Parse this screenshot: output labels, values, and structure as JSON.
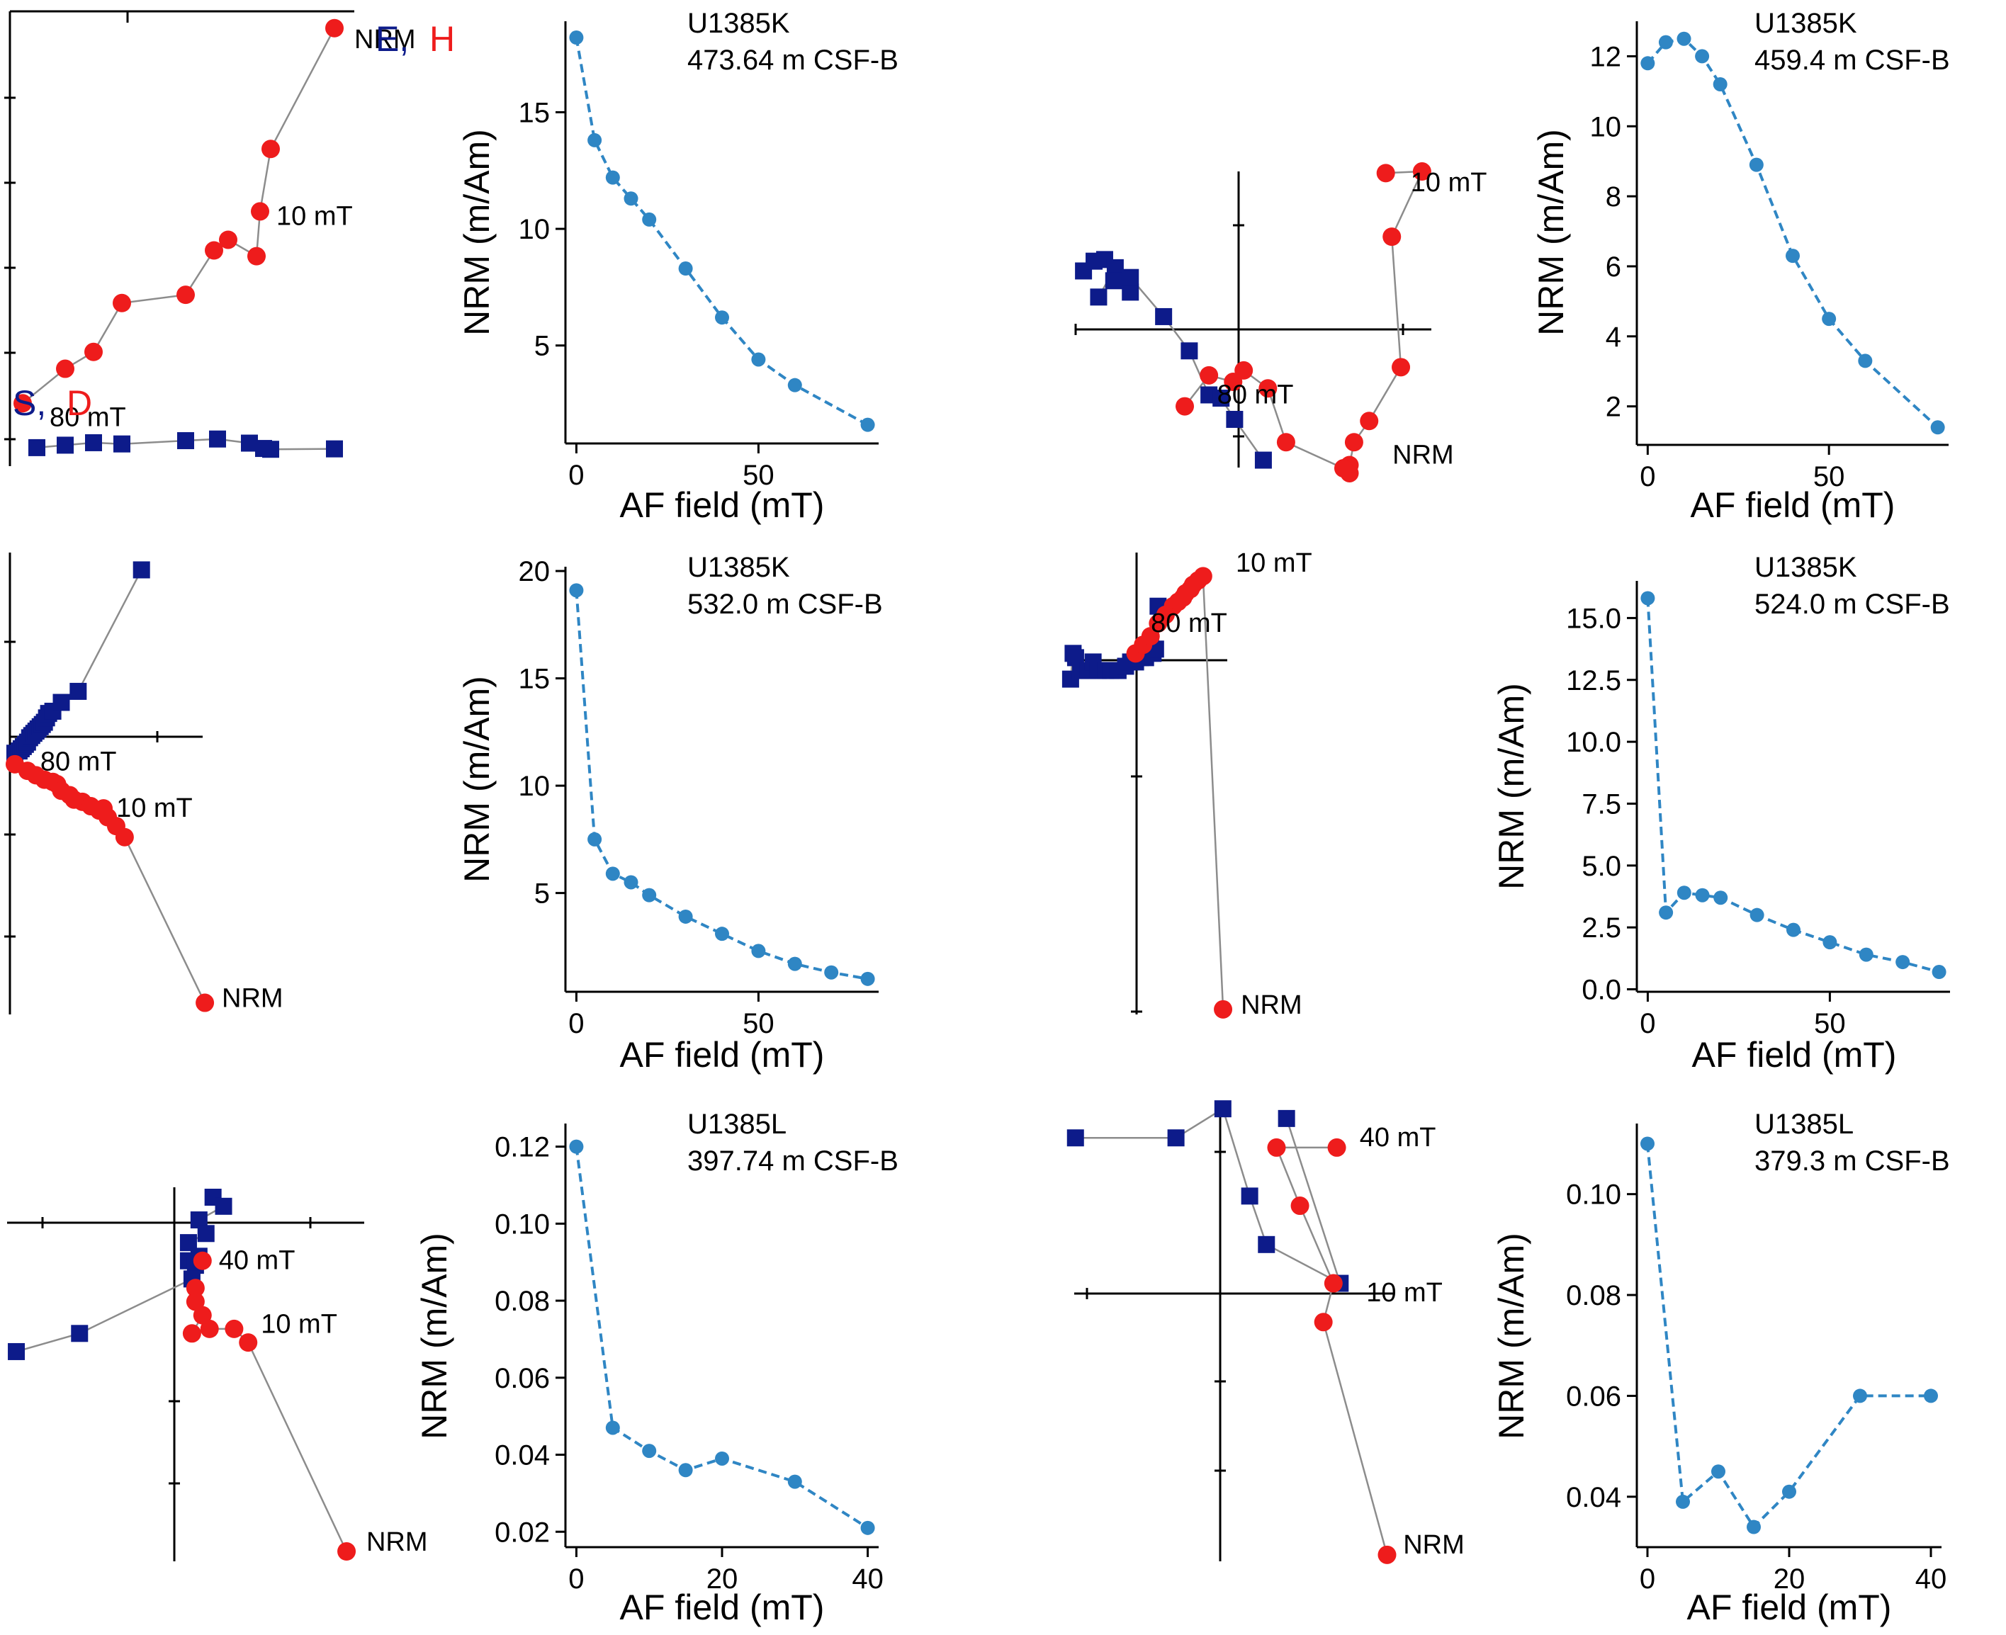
{
  "colors": {
    "horizontal": "#0d1b8a",
    "vertical": "#ee1c1c",
    "decay": "#2f86c4",
    "connector": "#8c8c8c",
    "axis": "#000000"
  },
  "zij_legend": {
    "e_label": "E,",
    "h_label": "H",
    "s_label": "S,",
    "d_label": "D"
  },
  "chart_data": [
    {
      "id": "zij-1",
      "type": "scatter",
      "subtype": "zijderveld",
      "horizontal": [
        [
          12,
          -2.3
        ],
        [
          20,
          -1.7
        ],
        [
          28,
          -1.1
        ],
        [
          36,
          -1.4
        ],
        [
          54,
          -0.6
        ],
        [
          63,
          -0.2
        ],
        [
          72,
          -1.2
        ],
        [
          76,
          -2.5
        ],
        [
          78,
          -2.7
        ],
        [
          96,
          -2.6
        ]
      ],
      "vertical": [
        [
          96,
          99.8
        ],
        [
          78,
          70.4
        ],
        [
          75,
          55.2
        ],
        [
          74,
          44.3
        ],
        [
          66,
          48.3
        ],
        [
          62,
          45.7
        ],
        [
          54,
          34.9
        ],
        [
          36,
          32.9
        ],
        [
          28,
          21.0
        ],
        [
          20,
          16.9
        ],
        [
          8,
          8.5
        ]
      ],
      "annotations": [
        {
          "text": "80 mT",
          "x": 12,
          "y": 5
        },
        {
          "text": "10 mT",
          "x": 76,
          "y": 54
        },
        {
          "text": "NRM",
          "x": 98,
          "y": 97
        }
      ]
    },
    {
      "id": "decay-1",
      "type": "line",
      "title": "U1385K\n473.64 m CSF-B",
      "xlabel": "AF field (mT)",
      "ylabel": "NRM (m/Am)",
      "x": [
        0,
        5,
        10,
        15,
        20,
        30,
        40,
        50,
        60,
        80
      ],
      "y": [
        18.2,
        13.8,
        12.2,
        11.3,
        10.4,
        8.3,
        6.2,
        4.4,
        3.3,
        1.6
      ],
      "xlim": [
        -3,
        83
      ],
      "ylim": [
        0.8,
        18.9
      ],
      "xticks": [
        0,
        50
      ],
      "yticks": [
        5,
        10,
        15
      ]
    },
    {
      "id": "zij-2",
      "type": "scatter",
      "subtype": "zijderveld",
      "horizontal": [
        [
          -100,
          26
        ],
        [
          -86,
          33
        ],
        [
          -93,
          32
        ],
        [
          -79,
          28
        ],
        [
          -90,
          10
        ],
        [
          -80,
          20
        ],
        [
          -69,
          13
        ],
        [
          -69,
          22
        ],
        [
          -47,
          -2
        ],
        [
          -30,
          -23
        ],
        [
          -17,
          -50
        ],
        [
          -9,
          -52
        ],
        [
          0,
          -65
        ],
        [
          19,
          -90
        ]
      ],
      "vertical": [
        [
          100,
          86
        ],
        [
          124,
          87
        ],
        [
          104,
          47
        ],
        [
          110,
          -33
        ],
        [
          89,
          -66
        ],
        [
          79,
          -79
        ],
        [
          76,
          -93
        ],
        [
          76,
          -98
        ],
        [
          72,
          -95
        ],
        [
          34,
          -79
        ],
        [
          22,
          -46
        ],
        [
          6,
          -35
        ],
        [
          -1,
          -42
        ],
        [
          -17,
          -38
        ],
        [
          -33,
          -57
        ]
      ],
      "annotations": [
        {
          "text": "10 mT",
          "x": 108,
          "y": 80
        },
        {
          "text": "80 mT",
          "x": -20,
          "y": -50
        },
        {
          "text": "NRM",
          "x": 96,
          "y": -87
        }
      ]
    },
    {
      "id": "decay-2",
      "type": "line",
      "title": "U1385K\n459.4 m CSF-B",
      "xlabel": "AF field (mT)",
      "ylabel": "NRM (m/Am)",
      "x": [
        0,
        5,
        10,
        15,
        20,
        30,
        40,
        50,
        60,
        80
      ],
      "y": [
        11.8,
        12.4,
        12.5,
        12.0,
        11.2,
        8.9,
        6.3,
        4.5,
        3.3,
        1.4
      ],
      "xlim": [
        -3,
        83
      ],
      "ylim": [
        0.9,
        13.0
      ],
      "xticks": [
        0,
        50
      ],
      "yticks": [
        2,
        4,
        6,
        8,
        10,
        12
      ]
    },
    {
      "id": "zij-3",
      "type": "scatter",
      "subtype": "zijderveld",
      "horizontal": [
        [
          0,
          5
        ],
        [
          2,
          6
        ],
        [
          3,
          7
        ],
        [
          4,
          8
        ],
        [
          5,
          9
        ],
        [
          6,
          10
        ],
        [
          7,
          12
        ],
        [
          8,
          13
        ],
        [
          9,
          14
        ],
        [
          10,
          15
        ],
        [
          11,
          16
        ],
        [
          12,
          17
        ],
        [
          13,
          18
        ],
        [
          14,
          19
        ],
        [
          15,
          21
        ],
        [
          16,
          23
        ],
        [
          18,
          24
        ],
        [
          22,
          28
        ],
        [
          30,
          33
        ],
        [
          60,
          88
        ]
      ],
      "vertical": [
        [
          0,
          0
        ],
        [
          6,
          -3
        ],
        [
          10,
          -5
        ],
        [
          14,
          -7
        ],
        [
          18,
          -8
        ],
        [
          20,
          -9
        ],
        [
          22,
          -12
        ],
        [
          26,
          -14
        ],
        [
          28,
          -16
        ],
        [
          32,
          -17
        ],
        [
          36,
          -19
        ],
        [
          40,
          -21
        ],
        [
          42,
          -20
        ],
        [
          44,
          -24
        ],
        [
          48,
          -28
        ],
        [
          52,
          -33
        ],
        [
          90,
          -108
        ]
      ],
      "annotations": [
        {
          "text": "80 mT",
          "x": 6,
          "y": 1
        },
        {
          "text": "10 mT",
          "x": 42,
          "y": -20
        },
        {
          "text": "NRM",
          "x": 92,
          "y": -106
        }
      ]
    },
    {
      "id": "decay-3",
      "type": "line",
      "title": "U1385K\n532.0 m CSF-B",
      "xlabel": "AF field (mT)",
      "ylabel": "NRM (m/Am)",
      "x": [
        0,
        5,
        10,
        15,
        20,
        30,
        40,
        50,
        60,
        70,
        80
      ],
      "y": [
        19.1,
        7.5,
        5.9,
        5.5,
        4.9,
        3.9,
        3.1,
        2.3,
        1.7,
        1.3,
        1.0
      ],
      "xlim": [
        -3,
        83
      ],
      "ylim": [
        0.4,
        20.2
      ],
      "xticks": [
        0,
        50
      ],
      "yticks": [
        5,
        10,
        15,
        20
      ]
    },
    {
      "id": "zij-4",
      "type": "scatter",
      "subtype": "zijderveld",
      "horizontal": [
        [
          -21,
          -3
        ],
        [
          -20,
          3
        ],
        [
          -19,
          2
        ],
        [
          -17,
          -1
        ],
        [
          -14,
          -1
        ],
        [
          -12,
          1
        ],
        [
          -10,
          -1
        ],
        [
          -7,
          -1
        ],
        [
          -5,
          -1
        ],
        [
          -2,
          -1
        ],
        [
          1,
          0
        ],
        [
          3,
          1
        ],
        [
          5,
          1
        ],
        [
          7,
          2
        ],
        [
          9,
          2
        ],
        [
          11,
          5
        ],
        [
          12,
          3
        ],
        [
          13,
          4
        ],
        [
          14,
          14
        ]
      ],
      "vertical": [
        [
          5,
          3
        ],
        [
          8,
          5
        ],
        [
          11,
          7
        ],
        [
          14,
          10
        ],
        [
          17,
          12
        ],
        [
          20,
          14
        ],
        [
          22,
          15
        ],
        [
          24,
          16
        ],
        [
          25,
          17
        ],
        [
          27,
          18
        ],
        [
          28,
          19
        ],
        [
          30,
          20
        ],
        [
          32,
          21
        ],
        [
          40,
          -80
        ]
      ],
      "annotations": [
        {
          "text": "10 mT",
          "x": 40,
          "y": 24
        },
        {
          "text": "80 mT",
          "x": 6,
          "y": 10
        },
        {
          "text": "NRM",
          "x": 42,
          "y": -79
        }
      ]
    },
    {
      "id": "decay-4",
      "type": "line",
      "title": "U1385K\n524.0 m CSF-B",
      "xlabel": "AF field (mT)",
      "ylabel": "NRM (m/Am)",
      "x": [
        0,
        5,
        10,
        15,
        20,
        30,
        40,
        50,
        60,
        70,
        80
      ],
      "y": [
        15.8,
        3.1,
        3.9,
        3.8,
        3.7,
        3.0,
        2.4,
        1.9,
        1.4,
        1.1,
        0.7
      ],
      "xlim": [
        -3,
        83
      ],
      "ylim": [
        -0.1,
        16.5
      ],
      "xticks": [
        0,
        50
      ],
      "yticks": [
        0.0,
        2.5,
        5.0,
        7.5,
        10.0,
        12.5,
        15.0
      ]
    },
    {
      "id": "zij-5",
      "type": "scatter",
      "subtype": "zijderveld",
      "horizontal": [
        [
          12,
          12
        ],
        [
          15,
          10
        ],
        [
          8,
          7
        ],
        [
          10,
          4
        ],
        [
          5,
          2
        ],
        [
          8,
          -1
        ],
        [
          5,
          -2
        ],
        [
          7,
          -3
        ],
        [
          6,
          -6
        ],
        [
          -26,
          -18
        ],
        [
          -44,
          -22
        ]
      ],
      "vertical": [
        [
          50,
          -66
        ],
        [
          22,
          -20
        ],
        [
          18,
          -17
        ],
        [
          11,
          -17
        ],
        [
          6,
          -18
        ],
        [
          9,
          -14
        ],
        [
          7,
          -11
        ],
        [
          7,
          -8
        ],
        [
          9,
          -2
        ]
      ],
      "annotations": [
        {
          "text": "40 mT",
          "x": 10,
          "y": -2
        },
        {
          "text": "10 mT",
          "x": 22,
          "y": -16
        },
        {
          "text": "NRM",
          "x": 52,
          "y": -64
        }
      ]
    },
    {
      "id": "decay-5",
      "type": "line",
      "title": "U1385L\n397.74 m CSF-B",
      "xlabel": "AF field (mT)",
      "ylabel": "NRM (m/Am)",
      "x": [
        0,
        5,
        10,
        15,
        20,
        30,
        40
      ],
      "y": [
        0.12,
        0.047,
        0.041,
        0.036,
        0.039,
        0.033,
        0.021
      ],
      "xlim": [
        -1.5,
        41.5
      ],
      "ylim": [
        0.016,
        0.126
      ],
      "xticks": [
        0,
        20,
        40
      ],
      "yticks": [
        0.02,
        0.04,
        0.06,
        0.08,
        0.1,
        0.12
      ]
    },
    {
      "id": "zij-6",
      "type": "scatter",
      "subtype": "zijderveld",
      "horizontal": [
        [
          -46,
          13
        ],
        [
          -16,
          13
        ],
        [
          -2,
          16
        ],
        [
          6,
          7
        ],
        [
          11,
          2
        ],
        [
          33,
          -2
        ],
        [
          17,
          15
        ]
      ],
      "vertical": [
        [
          32,
          12
        ],
        [
          14,
          12
        ],
        [
          21,
          6
        ],
        [
          31,
          -2
        ],
        [
          28,
          -6
        ],
        [
          47,
          -30
        ]
      ],
      "annotations": [
        {
          "text": "40 mT",
          "x": 35,
          "y": 13
        },
        {
          "text": "10 mT",
          "x": 37,
          "y": -3
        },
        {
          "text": "NRM",
          "x": 48,
          "y": -29
        }
      ]
    },
    {
      "id": "decay-6",
      "type": "line",
      "title": "U1385L\n379.3 m CSF-B",
      "xlabel": "AF field (mT)",
      "ylabel": "NRM (m/Am)",
      "x": [
        0,
        5,
        10,
        15,
        20,
        30,
        40
      ],
      "y": [
        0.11,
        0.039,
        0.045,
        0.034,
        0.041,
        0.06,
        0.06
      ],
      "xlim": [
        -1.5,
        41.5
      ],
      "ylim": [
        0.03,
        0.114
      ],
      "xticks": [
        0,
        20,
        40
      ],
      "yticks": [
        0.04,
        0.06,
        0.08,
        0.1
      ]
    }
  ]
}
